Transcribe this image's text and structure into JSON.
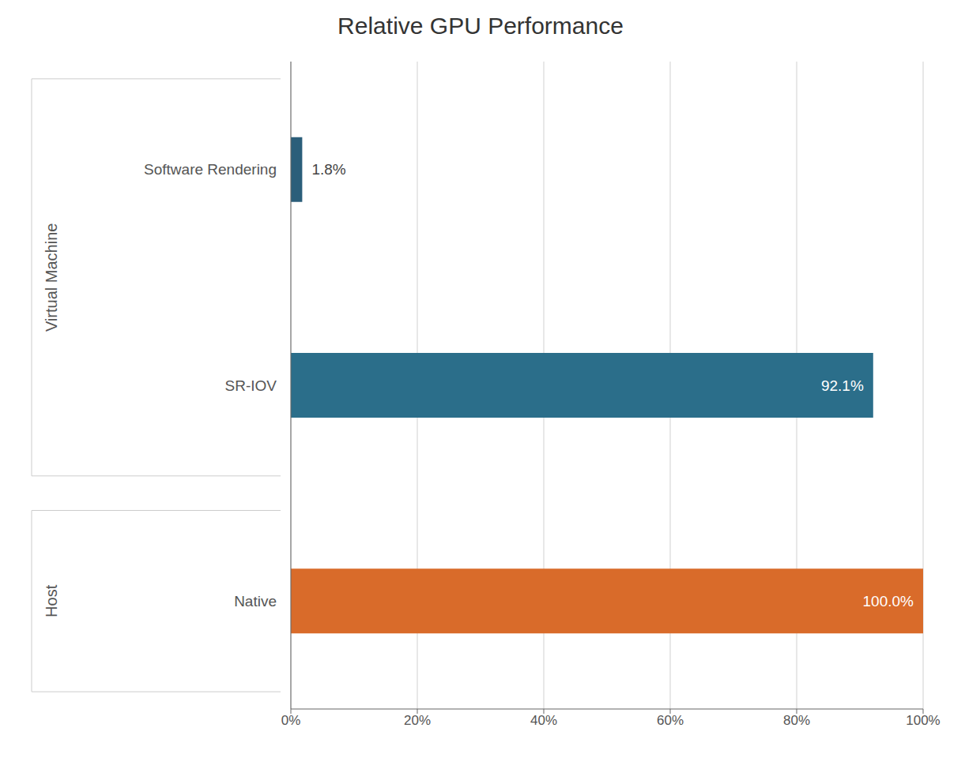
{
  "chart_data": {
    "type": "bar",
    "orientation": "horizontal",
    "title": "Relative GPU Performance",
    "categories": [
      "Native",
      "SR-IOV",
      "Software Rendering"
    ],
    "groups": [
      "Host",
      "Virtual Machine",
      "Virtual Machine"
    ],
    "values": [
      100.0,
      92.1,
      1.8
    ],
    "value_labels": [
      "100.0%",
      "92.1%",
      "1.8%"
    ],
    "data_labels": true,
    "colors": [
      "#D96B2A",
      "#2B6E8A",
      "#2B5E7A"
    ],
    "xlim": [
      0,
      100
    ],
    "xticks": [
      {
        "value": 0,
        "label": "0%"
      },
      {
        "value": 20,
        "label": "20%"
      },
      {
        "value": 40,
        "label": "40%"
      },
      {
        "value": 60,
        "label": "60%"
      },
      {
        "value": 80,
        "label": "80%"
      },
      {
        "value": 100,
        "label": "100%"
      }
    ],
    "grid": true
  }
}
